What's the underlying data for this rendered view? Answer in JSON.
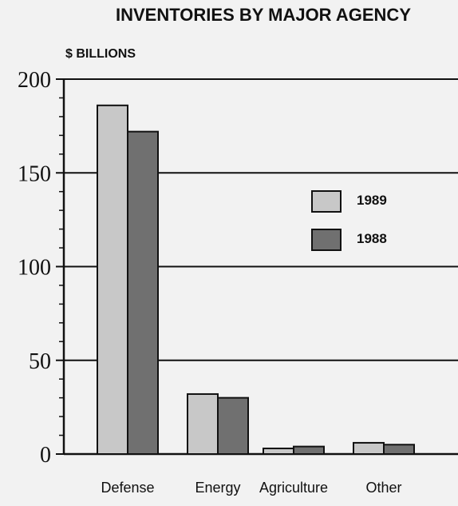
{
  "chart_data": {
    "type": "bar",
    "title": "INVENTORIES BY MAJOR AGENCY",
    "ylabel": "$ BILLIONS",
    "xlabel": "",
    "categories": [
      "Defense",
      "Energy",
      "Agriculture",
      "Other"
    ],
    "series": [
      {
        "name": "1989",
        "values": [
          186,
          32,
          3,
          6
        ],
        "color": "#c8c8c8"
      },
      {
        "name": "1988",
        "values": [
          172,
          30,
          4,
          5
        ],
        "color": "#707070"
      }
    ],
    "ylim": [
      0,
      200
    ],
    "yticks": [
      "0",
      "50",
      "100",
      "150",
      "200"
    ],
    "grid": true,
    "legend_position": "right"
  }
}
